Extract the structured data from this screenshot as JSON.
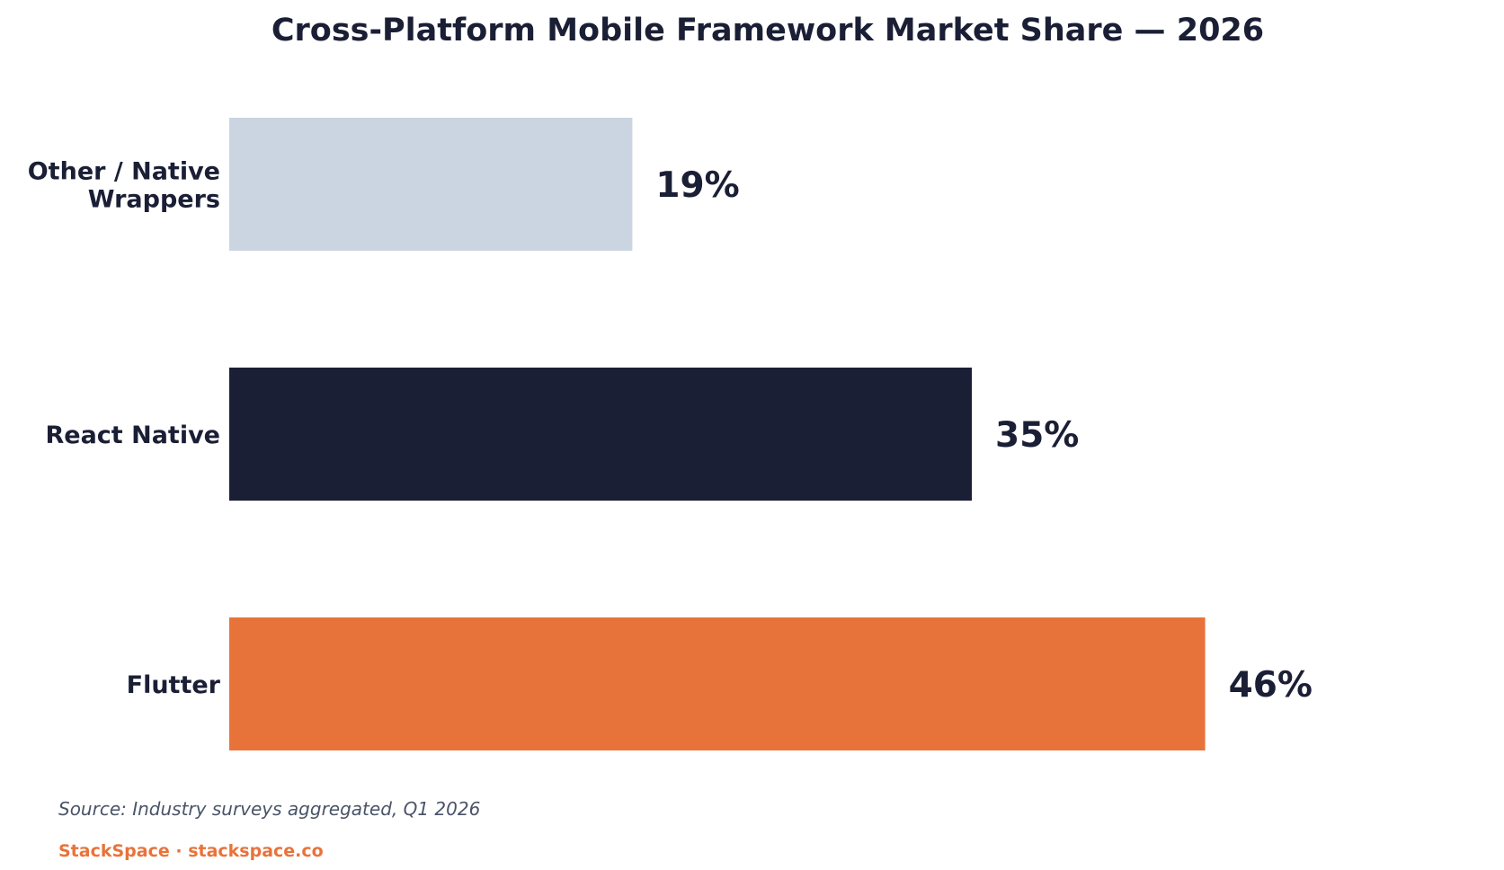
{
  "chart_data": {
    "type": "bar",
    "orientation": "horizontal",
    "title": "Cross-Platform Mobile Framework Market Share — 2026",
    "categories": [
      [
        "Other / Native",
        "Wrappers"
      ],
      [
        "React Native"
      ],
      [
        "Flutter"
      ]
    ],
    "values": [
      19,
      35,
      46
    ],
    "value_labels": [
      "19%",
      "35%",
      "46%"
    ],
    "colors": [
      "#cbd5e1",
      "#1b1f35",
      "#e8733a"
    ],
    "xlim": [
      0,
      50
    ],
    "grid": false,
    "legend": "none"
  },
  "footer": {
    "source": "Source: Industry surveys aggregated, Q1 2026",
    "brand": "StackSpace · stackspace.co",
    "brand_color": "#e8733a"
  }
}
